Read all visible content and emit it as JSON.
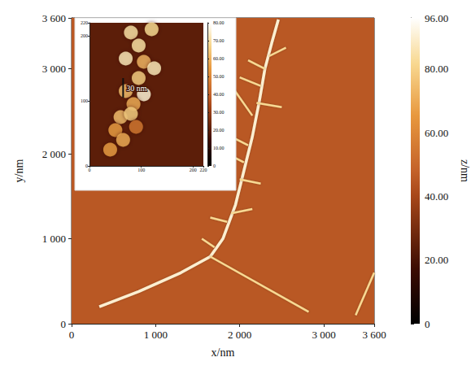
{
  "chart_data": {
    "type": "afm_image",
    "xlabel": "x/nm",
    "ylabel": "y/nm",
    "xlim": [
      0,
      3600
    ],
    "ylim": [
      0,
      3600
    ],
    "xticks": [
      0,
      {
        "value": 1000,
        "label": "1 000"
      },
      {
        "value": 2000,
        "label": "2 000"
      },
      {
        "value": 3000,
        "label": "3 000"
      },
      {
        "value": 3600,
        "label": "3 600"
      }
    ],
    "yticks": [
      0,
      {
        "value": 1000,
        "label": "1 000"
      },
      {
        "value": 2000,
        "label": "2 000"
      },
      {
        "value": 3000,
        "label": "3 000"
      },
      {
        "value": 3600,
        "label": "3 600"
      }
    ],
    "colorbar": {
      "label": "z/nm",
      "range": [
        0,
        96
      ],
      "ticks": [
        0,
        {
          "value": 20,
          "label": "20.00"
        },
        {
          "value": 40,
          "label": "40.00"
        },
        {
          "value": 60,
          "label": "60.00"
        },
        {
          "value": 80,
          "label": "80.00"
        },
        {
          "value": 96,
          "label": "96.00"
        }
      ]
    },
    "surface_z": 45,
    "features": [
      {
        "z": 90,
        "points": [
          [
            330,
            200
          ],
          [
            800,
            380
          ],
          [
            1300,
            600
          ],
          [
            1650,
            790
          ],
          [
            1800,
            1000
          ],
          [
            1950,
            1400
          ],
          [
            2050,
            1800
          ],
          [
            2150,
            2200
          ],
          [
            2230,
            2600
          ],
          [
            2300,
            3000
          ],
          [
            2380,
            3300
          ],
          [
            2460,
            3580
          ]
        ]
      },
      {
        "z": 82,
        "points": [
          [
            1650,
            790
          ],
          [
            2820,
            140
          ]
        ]
      },
      {
        "z": 82,
        "points": [
          [
            3380,
            100
          ],
          [
            3600,
            600
          ]
        ]
      },
      {
        "z": 82,
        "points": [
          [
            2150,
            2450
          ],
          [
            1780,
            2970
          ]
        ]
      },
      {
        "z": 82,
        "points": [
          [
            2200,
            2600
          ],
          [
            2500,
            2550
          ]
        ]
      },
      {
        "z": 82,
        "points": [
          [
            2100,
            2100
          ],
          [
            1900,
            2200
          ]
        ]
      },
      {
        "z": 82,
        "points": [
          [
            2000,
            1700
          ],
          [
            2250,
            1650
          ]
        ]
      },
      {
        "z": 82,
        "points": [
          [
            1850,
            1200
          ],
          [
            1650,
            1250
          ]
        ]
      },
      {
        "z": 82,
        "points": [
          [
            1900,
            1300
          ],
          [
            2150,
            1350
          ]
        ]
      },
      {
        "z": 82,
        "points": [
          [
            2300,
            3000
          ],
          [
            2100,
            3100
          ]
        ]
      },
      {
        "z": 82,
        "points": [
          [
            2350,
            3150
          ],
          [
            2550,
            3250
          ]
        ]
      },
      {
        "z": 82,
        "points": [
          [
            2250,
            2800
          ],
          [
            2000,
            2900
          ]
        ]
      },
      {
        "z": 82,
        "points": [
          [
            1700,
            900
          ],
          [
            1550,
            1000
          ]
        ]
      },
      {
        "z": 82,
        "points": [
          [
            2050,
            1900
          ],
          [
            1850,
            2000
          ]
        ]
      }
    ],
    "inset": {
      "xlim": [
        0,
        220
      ],
      "ylim": [
        0,
        220
      ],
      "xticks": [
        0,
        100,
        200,
        220
      ],
      "yticks": [
        0,
        100,
        200,
        220
      ],
      "colorbar": {
        "range": [
          0,
          80
        ],
        "ticks": [
          0,
          {
            "value": 10,
            "label": "10.00"
          },
          {
            "value": 20,
            "label": "20.00"
          },
          {
            "value": 30,
            "label": "30.00"
          },
          {
            "value": 40,
            "label": "40.00"
          },
          {
            "value": 50,
            "label": "50.00"
          },
          {
            "value": 60,
            "label": "60.00"
          },
          {
            "value": 70,
            "label": "70.00"
          },
          {
            "value": 80,
            "label": "80.00"
          }
        ]
      },
      "surface_z": 20,
      "particles": [
        [
          80,
          205,
          70
        ],
        [
          120,
          210,
          68
        ],
        [
          95,
          185,
          70
        ],
        [
          70,
          165,
          72
        ],
        [
          105,
          160,
          60
        ],
        [
          125,
          150,
          72
        ],
        [
          95,
          135,
          65
        ],
        [
          70,
          115,
          62
        ],
        [
          105,
          110,
          75
        ],
        [
          85,
          95,
          58
        ],
        [
          60,
          75,
          62
        ],
        [
          80,
          80,
          65
        ],
        [
          50,
          55,
          55
        ],
        [
          65,
          40,
          58
        ],
        [
          40,
          25,
          55
        ],
        [
          90,
          60,
          45
        ]
      ],
      "scale_bar": {
        "label": "30 nm",
        "x": 65,
        "y": [
          105,
          135
        ]
      }
    }
  }
}
